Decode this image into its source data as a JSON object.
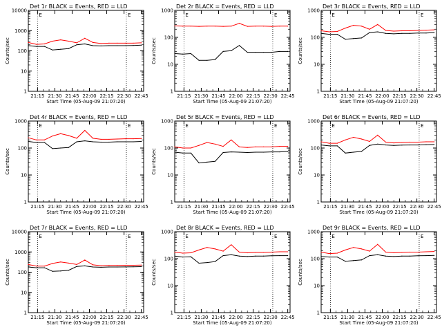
{
  "xlabel": "Start Time (05-Aug-09 21:07:20)",
  "ylabel": "Counts/sec",
  "x_ticks": [
    "21:15",
    "21:30",
    "21:45",
    "22:00",
    "22:15",
    "22:30",
    "22:45"
  ],
  "y_ticks_a": [
    "10000",
    "1000",
    "100",
    "10",
    "1"
  ],
  "y_ticks_b": [
    "1000",
    "100",
    "10",
    "1"
  ],
  "markers": [
    "E",
    "E"
  ],
  "colors": {
    "events": "#000000",
    "lld": "#ff0000",
    "axes": "#000000"
  },
  "chart_data": [
    {
      "type": "line",
      "title": "Det 1r BLACK = Events, RED = LLD",
      "yscale": "log",
      "ylim": [
        1,
        10000
      ],
      "y_ticks": "a",
      "x": [
        "21:07",
        "21:14",
        "21:21",
        "21:28",
        "21:35",
        "21:42",
        "21:49",
        "21:56",
        "22:03",
        "22:10",
        "22:17",
        "22:24",
        "22:31",
        "22:38",
        "22:45"
      ],
      "lld": [
        260,
        210,
        220,
        300,
        350,
        300,
        250,
        420,
        260,
        230,
        240,
        240,
        240,
        240,
        250
      ],
      "events": [
        180,
        165,
        165,
        110,
        120,
        130,
        200,
        220,
        180,
        175,
        180,
        180,
        180,
        185,
        190
      ]
    },
    {
      "type": "line",
      "title": "Det 2r BLACK = Events, RED = LLD",
      "yscale": "log",
      "ylim": [
        1,
        1000
      ],
      "y_ticks": "b",
      "x": [
        "21:07",
        "21:14",
        "21:21",
        "21:28",
        "21:35",
        "21:42",
        "21:49",
        "21:56",
        "22:03",
        "22:10",
        "22:17",
        "22:24",
        "22:31",
        "22:38",
        "22:45"
      ],
      "lld": [
        265,
        260,
        260,
        255,
        260,
        260,
        255,
        260,
        330,
        255,
        260,
        260,
        255,
        260,
        260
      ],
      "events": [
        25,
        24,
        25,
        14,
        14,
        15,
        30,
        32,
        50,
        28,
        28,
        28,
        28,
        30,
        30
      ]
    },
    {
      "type": "line",
      "title": "Det 3r BLACK = Events, RED = LLD",
      "yscale": "log",
      "ylim": [
        1,
        1000
      ],
      "y_ticks": "b",
      "x": [
        "21:07",
        "21:14",
        "21:21",
        "21:28",
        "21:35",
        "21:42",
        "21:49",
        "21:56",
        "22:03",
        "22:10",
        "22:17",
        "22:24",
        "22:31",
        "22:38",
        "22:45"
      ],
      "lld": [
        175,
        160,
        165,
        220,
        280,
        260,
        200,
        300,
        180,
        170,
        175,
        175,
        180,
        185,
        190
      ],
      "events": [
        140,
        130,
        130,
        85,
        90,
        95,
        150,
        160,
        140,
        135,
        140,
        140,
        145,
        145,
        150
      ]
    },
    {
      "type": "line",
      "title": "Det 4r BLACK = Events, RED = LLD",
      "yscale": "log",
      "ylim": [
        1,
        1000
      ],
      "y_ticks": "b",
      "x": [
        "21:07",
        "21:14",
        "21:21",
        "21:28",
        "21:35",
        "21:42",
        "21:49",
        "21:56",
        "22:03",
        "22:10",
        "22:17",
        "22:24",
        "22:31",
        "22:38",
        "22:45"
      ],
      "lld": [
        240,
        200,
        200,
        280,
        340,
        290,
        230,
        450,
        230,
        210,
        210,
        215,
        220,
        220,
        225
      ],
      "events": [
        175,
        160,
        160,
        95,
        100,
        105,
        170,
        185,
        170,
        165,
        165,
        170,
        170,
        170,
        175
      ]
    },
    {
      "type": "line",
      "title": "Det 5r BLACK = Events, RED = LLD",
      "yscale": "log",
      "ylim": [
        1,
        1000
      ],
      "y_ticks": "b",
      "x": [
        "21:07",
        "21:14",
        "21:21",
        "21:28",
        "21:35",
        "21:42",
        "21:49",
        "21:56",
        "22:03",
        "22:10",
        "22:17",
        "22:24",
        "22:31",
        "22:38",
        "22:45"
      ],
      "lld": [
        110,
        100,
        100,
        125,
        160,
        140,
        115,
        200,
        110,
        105,
        110,
        110,
        110,
        115,
        115
      ],
      "events": [
        70,
        65,
        65,
        28,
        30,
        32,
        68,
        72,
        70,
        68,
        70,
        70,
        72,
        72,
        75
      ]
    },
    {
      "type": "line",
      "title": "Det 6r BLACK = Events, RED = LLD",
      "yscale": "log",
      "ylim": [
        1,
        1000
      ],
      "y_ticks": "b",
      "x": [
        "21:07",
        "21:14",
        "21:21",
        "21:28",
        "21:35",
        "21:42",
        "21:49",
        "21:56",
        "22:03",
        "22:10",
        "22:17",
        "22:24",
        "22:31",
        "22:38",
        "22:45"
      ],
      "lld": [
        170,
        150,
        150,
        200,
        250,
        215,
        175,
        300,
        165,
        155,
        160,
        165,
        165,
        170,
        170
      ],
      "events": [
        130,
        120,
        120,
        65,
        70,
        75,
        125,
        140,
        130,
        125,
        128,
        130,
        130,
        132,
        135
      ]
    },
    {
      "type": "line",
      "title": "Det 7r BLACK = Events, RED = LLD",
      "yscale": "log",
      "ylim": [
        1,
        10000
      ],
      "y_ticks": "a",
      "x": [
        "21:07",
        "21:14",
        "21:21",
        "21:28",
        "21:35",
        "21:42",
        "21:49",
        "21:56",
        "22:03",
        "22:10",
        "22:17",
        "22:24",
        "22:31",
        "22:38",
        "22:45"
      ],
      "lld": [
        240,
        200,
        200,
        270,
        320,
        280,
        240,
        400,
        230,
        210,
        215,
        215,
        220,
        220,
        225
      ],
      "events": [
        180,
        165,
        165,
        110,
        115,
        125,
        190,
        205,
        180,
        175,
        180,
        180,
        182,
        185,
        188
      ]
    },
    {
      "type": "line",
      "title": "Det 8r BLACK = Events, RED = LLD",
      "yscale": "log",
      "ylim": [
        1,
        1000
      ],
      "y_ticks": "b",
      "x": [
        "21:07",
        "21:14",
        "21:21",
        "21:28",
        "21:35",
        "21:42",
        "21:49",
        "21:56",
        "22:03",
        "22:10",
        "22:17",
        "22:24",
        "22:31",
        "22:38",
        "22:45"
      ],
      "lld": [
        175,
        160,
        165,
        210,
        260,
        230,
        190,
        330,
        175,
        165,
        170,
        170,
        175,
        180,
        180
      ],
      "events": [
        125,
        115,
        118,
        68,
        72,
        78,
        130,
        140,
        125,
        120,
        125,
        125,
        128,
        130,
        130
      ]
    },
    {
      "type": "line",
      "title": "Det 9r BLACK = Events, RED = LLD",
      "yscale": "log",
      "ylim": [
        1,
        1000
      ],
      "y_ticks": "b",
      "x": [
        "21:07",
        "21:14",
        "21:21",
        "21:28",
        "21:35",
        "21:42",
        "21:49",
        "21:56",
        "22:03",
        "22:10",
        "22:17",
        "22:24",
        "22:31",
        "22:38",
        "22:45"
      ],
      "lld": [
        175,
        155,
        160,
        210,
        260,
        230,
        190,
        340,
        175,
        165,
        170,
        175,
        175,
        180,
        185
      ],
      "events": [
        120,
        115,
        115,
        80,
        85,
        90,
        130,
        140,
        125,
        120,
        125,
        125,
        128,
        130,
        132
      ]
    }
  ]
}
